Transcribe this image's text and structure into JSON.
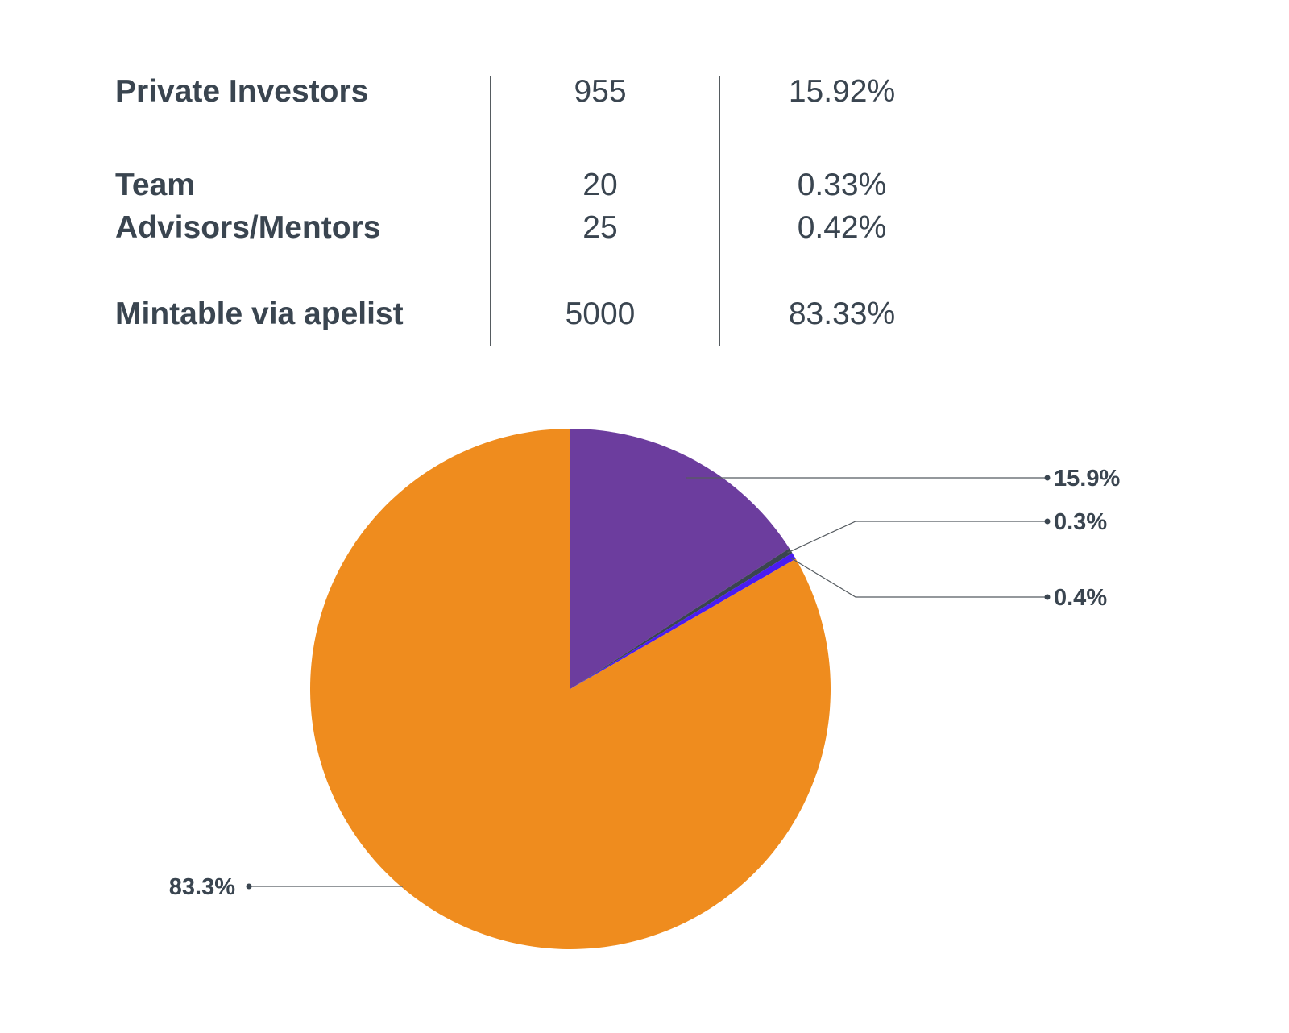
{
  "table": {
    "rows": [
      {
        "label": "Private Investors",
        "count": "955",
        "percent": "15.92%"
      },
      {
        "label": "Team",
        "count": "20",
        "percent": "0.33%"
      },
      {
        "label": "Advisors/Mentors",
        "count": "25",
        "percent": "0.42%"
      },
      {
        "label": "Mintable via apelist",
        "count": "5000",
        "percent": "83.33%"
      }
    ]
  },
  "chart_data": {
    "type": "pie",
    "categories": [
      "Private Investors",
      "Team",
      "Advisors/Mentors",
      "Mintable via apelist"
    ],
    "values": [
      15.92,
      0.33,
      0.42,
      83.33
    ],
    "labels": [
      "15.9%",
      "0.3%",
      "0.4%",
      "83.3%"
    ],
    "colors": [
      "#6c3d9e",
      "#3a4550",
      "#4a1cf2",
      "#ef8c1e"
    ],
    "start_angle_deg": 0,
    "direction": "clockwise"
  }
}
